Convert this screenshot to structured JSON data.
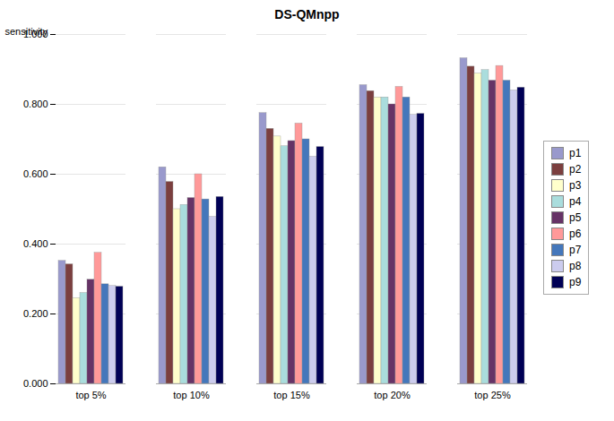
{
  "chart_data": {
    "type": "bar",
    "title": "DS-QMnpp",
    "ylabel": "sensitivity",
    "categories": [
      "top 5%",
      "top 10%",
      "top 15%",
      "top 20%",
      "top 25%"
    ],
    "series": [
      {
        "name": "p1",
        "color": "#9999CC",
        "values": [
          0.352,
          0.62,
          0.775,
          0.855,
          0.932
        ]
      },
      {
        "name": "p2",
        "color": "#7B3F3F",
        "values": [
          0.342,
          0.578,
          0.73,
          0.838,
          0.908
        ]
      },
      {
        "name": "p3",
        "color": "#FFFFCC",
        "values": [
          0.245,
          0.5,
          0.708,
          0.82,
          0.888
        ]
      },
      {
        "name": "p4",
        "color": "#AADDDD",
        "values": [
          0.26,
          0.512,
          0.68,
          0.82,
          0.898
        ]
      },
      {
        "name": "p5",
        "color": "#663366",
        "values": [
          0.298,
          0.532,
          0.695,
          0.8,
          0.868
        ]
      },
      {
        "name": "p6",
        "color": "#FF9999",
        "values": [
          0.375,
          0.6,
          0.745,
          0.85,
          0.91
        ]
      },
      {
        "name": "p7",
        "color": "#4477BB",
        "values": [
          0.285,
          0.528,
          0.7,
          0.82,
          0.868
        ]
      },
      {
        "name": "p8",
        "color": "#CCCCEE",
        "values": [
          0.28,
          0.478,
          0.65,
          0.77,
          0.84
        ]
      },
      {
        "name": "p9",
        "color": "#000055",
        "values": [
          0.278,
          0.535,
          0.678,
          0.773,
          0.848
        ]
      }
    ],
    "ylim": [
      0.0,
      1.0
    ],
    "yticks": [
      {
        "value": 0,
        "label": "0.000"
      },
      {
        "value": 0.2,
        "label": "0.200"
      },
      {
        "value": 0.4,
        "label": "0.400"
      },
      {
        "value": 0.6,
        "label": "0.600"
      },
      {
        "value": 0.8,
        "label": "0.800"
      },
      {
        "value": 1,
        "label": "1.000"
      }
    ],
    "grid": true,
    "legend": "right"
  }
}
